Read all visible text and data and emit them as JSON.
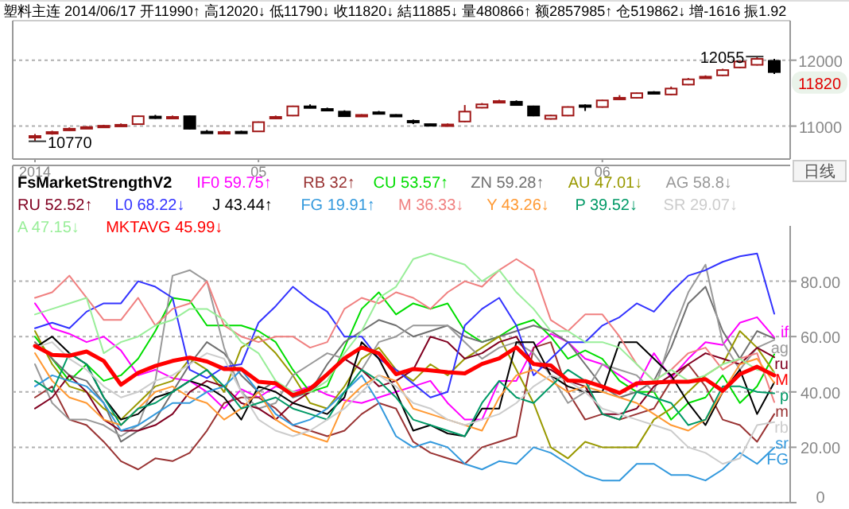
{
  "chart_data": [
    {
      "type": "candlestick",
      "title": "塑料主连 2014/06/17 开11990↑ 高12020↓ 低11790↓ 收11820↓ 結11885↓ 量480866↑ 额2857985↑ 仓519862↓ 增-1616 振1.92",
      "categories": [
        "2014",
        null,
        null,
        null,
        null,
        null,
        null,
        null,
        null,
        null,
        null,
        null,
        null,
        "05",
        null,
        null,
        null,
        null,
        null,
        null,
        null,
        null,
        null,
        null,
        null,
        null,
        null,
        null,
        null,
        null,
        null,
        null,
        null,
        "06",
        null,
        null,
        null,
        null,
        null,
        null,
        null,
        null,
        null,
        null
      ],
      "ohlc": [
        [
          10840,
          10880,
          10770,
          10850
        ],
        [
          10890,
          10930,
          10870,
          10910
        ],
        [
          10950,
          10980,
          10930,
          10960
        ],
        [
          10970,
          11000,
          10960,
          10985
        ],
        [
          10995,
          11020,
          10980,
          11005
        ],
        [
          11010,
          11040,
          11000,
          11020
        ],
        [
          11030,
          11160,
          11020,
          11150
        ],
        [
          11145,
          11170,
          11110,
          11140
        ],
        [
          11135,
          11160,
          11120,
          11140
        ],
        [
          11150,
          11160,
          10950,
          10960
        ],
        [
          10915,
          10940,
          10900,
          10910
        ],
        [
          10905,
          10930,
          10880,
          10910
        ],
        [
          10915,
          10930,
          10900,
          10910
        ],
        [
          10920,
          11070,
          10910,
          11060
        ],
        [
          11130,
          11160,
          11110,
          11140
        ],
        [
          11160,
          11310,
          11150,
          11300
        ],
        [
          11300,
          11330,
          11270,
          11290
        ],
        [
          11260,
          11280,
          11230,
          11250
        ],
        [
          11220,
          11240,
          11140,
          11150
        ],
        [
          11160,
          11180,
          11150,
          11170
        ],
        [
          11210,
          11230,
          11180,
          11200
        ],
        [
          11170,
          11180,
          11140,
          11160
        ],
        [
          11080,
          11100,
          11030,
          11070
        ],
        [
          11030,
          11040,
          11000,
          11020
        ],
        [
          11015,
          11040,
          11000,
          11025
        ],
        [
          11070,
          11320,
          11060,
          11220
        ],
        [
          11280,
          11350,
          11270,
          11330
        ],
        [
          11370,
          11400,
          11360,
          11380
        ],
        [
          11370,
          11390,
          11310,
          11320
        ],
        [
          11300,
          11310,
          11150,
          11160
        ],
        [
          11110,
          11170,
          11100,
          11160
        ],
        [
          11160,
          11300,
          11150,
          11290
        ],
        [
          11315,
          11330,
          11230,
          11310
        ],
        [
          11290,
          11400,
          11280,
          11390
        ],
        [
          11420,
          11470,
          11400,
          11430
        ],
        [
          11430,
          11510,
          11420,
          11500
        ],
        [
          11515,
          11530,
          11500,
          11510
        ],
        [
          11480,
          11600,
          11470,
          11570
        ],
        [
          11630,
          11730,
          11620,
          11710
        ],
        [
          11740,
          11770,
          11730,
          11750
        ],
        [
          11770,
          11870,
          11760,
          11850
        ],
        [
          11890,
          11990,
          11880,
          11980
        ],
        [
          11930,
          12055,
          11920,
          12020
        ],
        [
          11990,
          12020,
          11790,
          11820
        ]
      ],
      "ylim": [
        10500,
        12600
      ],
      "yticks": [
        11000,
        12000
      ],
      "grid": "y",
      "annotations": [
        {
          "text": "10770",
          "x": "2014",
          "y": 10770
        },
        "12055",
        "11820",
        "日线"
      ]
    },
    {
      "type": "line",
      "legend_title": "FsMarketStrengthV2",
      "legend": "top left",
      "grid": "y",
      "tick_labels": "y",
      "ylim": [
        0,
        100
      ],
      "yticks": [
        0,
        {
          "value": 20,
          "label": "20.00"
        },
        {
          "value": 40,
          "label": "40.00"
        },
        {
          "value": 60,
          "label": "60.00"
        },
        {
          "value": 80,
          "label": "80.00"
        }
      ],
      "categories": [
        null,
        null,
        null,
        null,
        null,
        null,
        null,
        null,
        null,
        null,
        null,
        null,
        null,
        null,
        null,
        null,
        null,
        null,
        null,
        null,
        null,
        null,
        null,
        null,
        null,
        null,
        null,
        null,
        null,
        null,
        null,
        null,
        null,
        null,
        null,
        null,
        null,
        null,
        null,
        null,
        null,
        null,
        null,
        null
      ],
      "series": [
        {
          "name": "IF0 59.75↑",
          "color": "#ff00ff",
          "values": [
            72,
            63,
            61,
            58,
            60,
            55,
            46,
            48,
            45,
            44,
            40,
            34,
            41,
            38,
            42,
            40,
            42,
            39,
            37,
            36,
            38,
            40,
            42,
            44,
            36,
            30,
            30,
            44,
            44,
            56,
            61,
            58,
            52,
            50,
            46,
            42,
            54,
            45,
            52,
            58,
            57,
            65,
            67,
            59.75
          ]
        },
        {
          "name": "RB 32↑",
          "color": "#993333",
          "values": [
            38,
            42,
            30,
            28,
            22,
            15,
            12,
            16,
            15,
            18,
            26,
            36,
            38,
            38,
            34,
            28,
            26,
            24,
            26,
            32,
            36,
            34,
            22,
            18,
            16,
            14,
            20,
            22,
            24,
            56,
            58,
            40,
            30,
            32,
            30,
            32,
            34,
            44,
            50,
            42,
            30,
            28,
            22,
            32
          ]
        },
        {
          "name": "CU 53.57↑",
          "color": "#00dd00",
          "values": [
            60,
            52,
            44,
            50,
            44,
            46,
            52,
            62,
            74,
            73,
            64,
            64,
            64,
            62,
            58,
            48,
            40,
            42,
            56,
            70,
            76,
            68,
            72,
            70,
            72,
            62,
            58,
            60,
            64,
            66,
            60,
            52,
            55,
            52,
            44,
            40,
            40,
            30,
            36,
            38,
            46,
            36,
            42,
            53.57
          ]
        },
        {
          "name": "ZN 59.28↑",
          "color": "#707070",
          "values": [
            58,
            52,
            46,
            44,
            36,
            22,
            26,
            30,
            40,
            50,
            58,
            54,
            46,
            40,
            44,
            38,
            40,
            50,
            58,
            62,
            66,
            64,
            60,
            62,
            64,
            60,
            58,
            60,
            62,
            64,
            62,
            58,
            50,
            42,
            38,
            40,
            44,
            56,
            72,
            78,
            62,
            52,
            62,
            59.28
          ]
        },
        {
          "name": "AU 47.01↓",
          "color": "#999900",
          "values": [
            62,
            50,
            42,
            40,
            34,
            30,
            36,
            42,
            44,
            52,
            48,
            40,
            56,
            60,
            54,
            46,
            36,
            34,
            42,
            52,
            56,
            48,
            44,
            50,
            46,
            52,
            56,
            60,
            48,
            36,
            20,
            16,
            22,
            20,
            20,
            20,
            30,
            34,
            40,
            46,
            50,
            62,
            56,
            47.01
          ]
        },
        {
          "name": "AG 58.8↓",
          "color": "#999999",
          "values": [
            50,
            36,
            30,
            30,
            28,
            24,
            28,
            44,
            82,
            84,
            80,
            56,
            40,
            34,
            36,
            46,
            50,
            54,
            52,
            48,
            58,
            60,
            64,
            64,
            64,
            58,
            52,
            56,
            58,
            54,
            46,
            36,
            40,
            50,
            48,
            46,
            40,
            60,
            76,
            86,
            58,
            48,
            56,
            58.8
          ]
        },
        {
          "name": "RU 52.52↑",
          "color": "#800020",
          "values": [
            34,
            38,
            46,
            40,
            30,
            26,
            26,
            28,
            32,
            40,
            44,
            42,
            36,
            34,
            30,
            36,
            40,
            46,
            52,
            48,
            42,
            44,
            48,
            60,
            58,
            52,
            54,
            58,
            60,
            50,
            48,
            44,
            42,
            32,
            32,
            34,
            42,
            46,
            50,
            54,
            52,
            50,
            56,
            52.52
          ]
        },
        {
          "name": "L0 68.22↓",
          "color": "#3333ff",
          "values": [
            63,
            65,
            63,
            69,
            72,
            72,
            80,
            78,
            74,
            48,
            45,
            49,
            50,
            65,
            71,
            78,
            73,
            69,
            60,
            60,
            52,
            48,
            43,
            38,
            40,
            64,
            70,
            74,
            64,
            46,
            52,
            58,
            58,
            64,
            67,
            72,
            69,
            76,
            82,
            84,
            87,
            89,
            90,
            68.22
          ]
        },
        {
          "name": "J 43.44↑",
          "color": "#000000",
          "values": [
            56,
            60,
            54,
            50,
            38,
            30,
            32,
            38,
            40,
            44,
            42,
            38,
            30,
            42,
            40,
            36,
            34,
            32,
            38,
            58,
            52,
            40,
            26,
            28,
            25,
            24,
            34,
            34,
            58,
            58,
            46,
            42,
            40,
            40,
            58,
            58,
            52,
            46,
            36,
            28,
            40,
            48,
            32,
            43.44
          ]
        },
        {
          "name": "FG 19.91↑",
          "color": "#3399dd",
          "values": [
            42,
            46,
            44,
            42,
            36,
            26,
            28,
            32,
            36,
            36,
            40,
            42,
            48,
            40,
            32,
            28,
            30,
            34,
            40,
            46,
            36,
            24,
            20,
            22,
            20,
            14,
            12,
            15,
            14,
            20,
            18,
            14,
            10,
            8,
            8,
            14,
            14,
            10,
            10,
            8,
            12,
            18,
            14,
            19.91
          ]
        },
        {
          "name": "M 36.33↓",
          "color": "#f08080",
          "values": [
            74,
            76,
            82,
            74,
            66,
            66,
            74,
            64,
            70,
            72,
            80,
            64,
            60,
            58,
            60,
            60,
            56,
            58,
            70,
            74,
            72,
            76,
            74,
            70,
            76,
            80,
            78,
            84,
            88,
            84,
            66,
            62,
            68,
            68,
            60,
            50,
            44,
            48,
            54,
            56,
            48,
            52,
            54,
            36.33
          ]
        },
        {
          "name": "Y 43.26↓",
          "color": "#ff9933",
          "values": [
            54,
            44,
            38,
            36,
            30,
            28,
            34,
            40,
            42,
            38,
            36,
            30,
            34,
            40,
            30,
            26,
            24,
            22,
            36,
            42,
            46,
            44,
            34,
            32,
            30,
            28,
            26,
            38,
            46,
            48,
            44,
            40,
            42,
            40,
            38,
            36,
            32,
            28,
            26,
            30,
            40,
            50,
            52,
            43.26
          ]
        },
        {
          "name": "P 39.52↓",
          "color": "#009966",
          "values": [
            44,
            40,
            54,
            50,
            38,
            28,
            34,
            36,
            40,
            44,
            48,
            42,
            34,
            36,
            38,
            34,
            32,
            30,
            40,
            48,
            44,
            38,
            30,
            28,
            26,
            24,
            36,
            44,
            38,
            36,
            42,
            48,
            44,
            32,
            30,
            40,
            38,
            36,
            28,
            30,
            42,
            42,
            40,
            39.52
          ]
        },
        {
          "name": "SR 29.07↓",
          "color": "#cccccc",
          "values": [
            56,
            58,
            52,
            48,
            42,
            38,
            40,
            44,
            46,
            50,
            54,
            52,
            40,
            30,
            26,
            24,
            26,
            30,
            34,
            40,
            46,
            42,
            36,
            34,
            30,
            28,
            30,
            32,
            36,
            42,
            46,
            44,
            40,
            34,
            32,
            30,
            28,
            26,
            20,
            18,
            14,
            16,
            28,
            29.07
          ]
        },
        {
          "name": "A 47.15↓",
          "color": "#99ee99",
          "values": [
            68,
            70,
            72,
            74,
            54,
            58,
            60,
            64,
            66,
            70,
            70,
            66,
            58,
            54,
            44,
            40,
            40,
            44,
            54,
            62,
            74,
            78,
            88,
            90,
            88,
            86,
            80,
            84,
            76,
            70,
            62,
            62,
            58,
            58,
            56,
            50,
            44,
            48,
            44,
            46,
            50,
            52,
            48,
            47.15
          ]
        },
        {
          "name": "MKTAVG 45.99↓",
          "color": "#ff0000",
          "values": [
            56.6,
            53.4,
            53.1,
            54.6,
            51.2,
            42.6,
            46.9,
            49.4,
            51.2,
            52.4,
            51,
            48.3,
            48.3,
            43.7,
            43.1,
            38.8,
            41.1,
            46.4,
            52.1,
            56.1,
            53.9,
            46.4,
            48.3,
            47.8,
            47.1,
            46.7,
            50.1,
            52.1,
            56.1,
            50.1,
            49.6,
            44.1,
            43.9,
            41.9,
            39.6,
            43.1,
            43.4,
            43.7,
            43.7,
            44.6,
            40.4,
            46.4,
            49.1,
            45.99
          ]
        }
      ],
      "annotations": [
        "if",
        "ag",
        "ru",
        "M",
        "p",
        "m",
        "rb",
        "sr",
        "FG"
      ]
    }
  ]
}
